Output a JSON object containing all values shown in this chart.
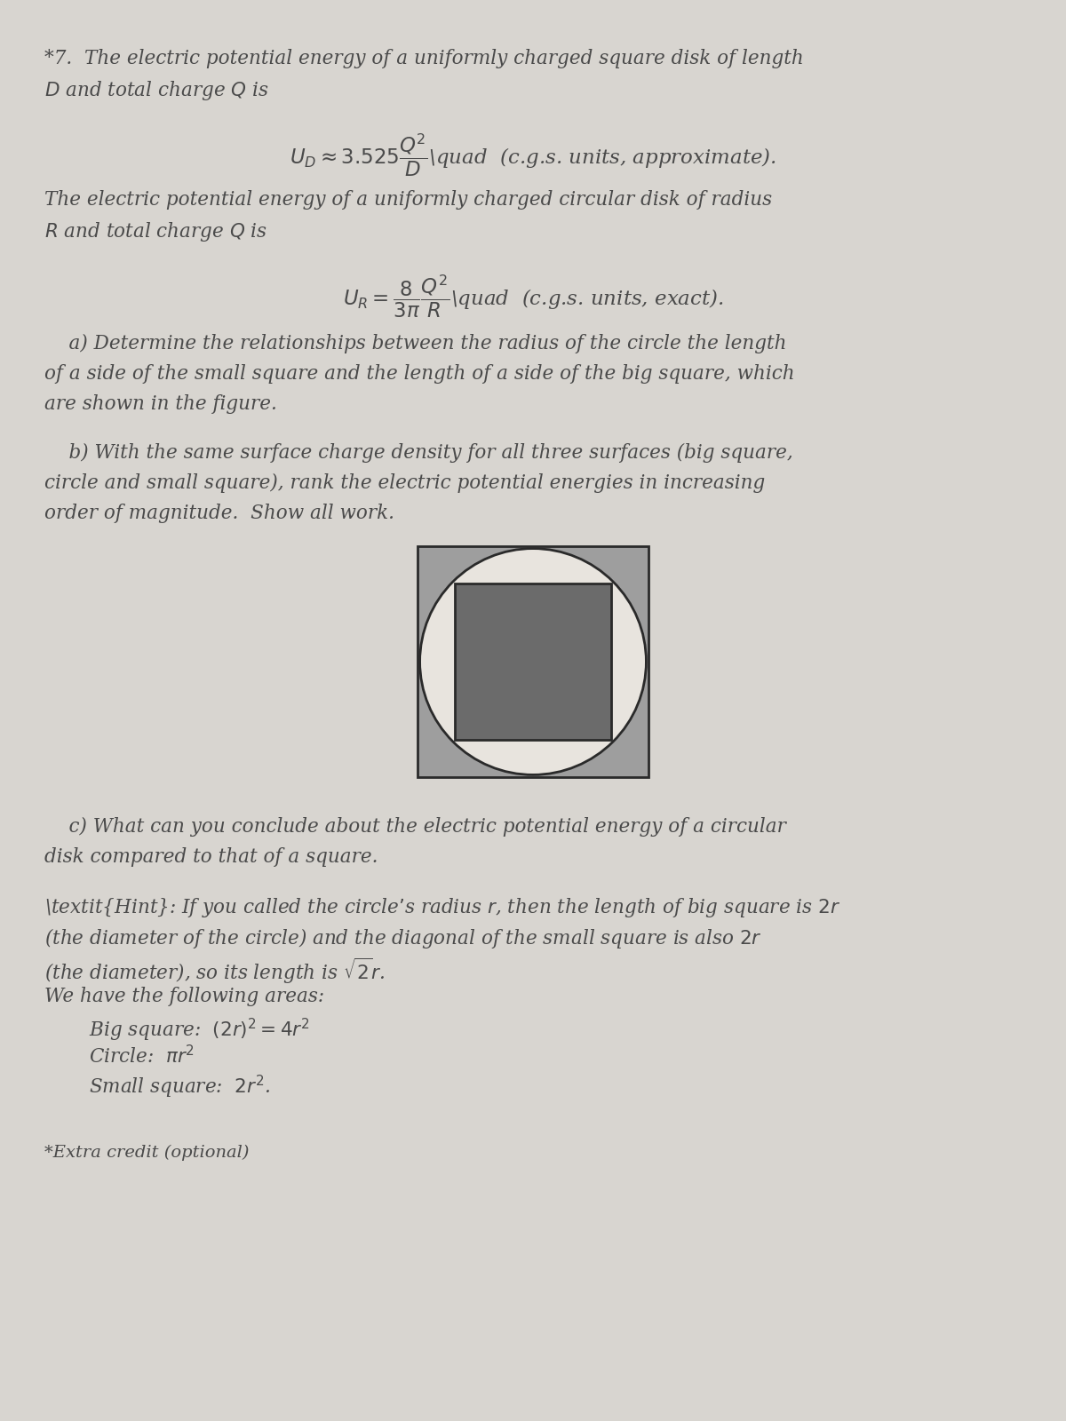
{
  "bg_color": "#d8d5d0",
  "text_color": "#4a4a4a",
  "title_line1": "*7.  The electric potential energy of a uniformly charged square disk of length",
  "title_line2": "$D$ and total charge $Q$ is",
  "eq1": "$U_D \\approx 3.525\\dfrac{Q^2}{D}$\\quad  (c.g.s. units, approximate).",
  "para2_line1": "The electric potential energy of a uniformly charged circular disk of radius",
  "para2_line2": "$R$ and total charge $Q$ is",
  "eq2": "$U_R = \\dfrac{8}{3\\pi}\\dfrac{Q^2}{R}$\\quad  (c.g.s. units, exact).",
  "part_a_indent": "    a) Determine the relationships between the radius of the circle the length",
  "part_a_line2": "of a side of the small square and the length of a side of the big square, which",
  "part_a_line3": "are shown in the figure.",
  "part_b_indent": "    b) With the same surface charge density for all three surfaces (big square,",
  "part_b_line2": "circle and small square), rank the electric potential energies in increasing",
  "part_b_line3": "order of magnitude.  Show all work.",
  "part_c_indent": "    c) What can you conclude about the electric potential energy of a circular",
  "part_c_line2": "disk compared to that of a square.",
  "hint_line1": "\\textit{Hint}: If you called the circle’s radius $r$, then the length of big square is $2r$",
  "hint_line1_plain": "Hint:  If you called the circle’s radius r, then the length of big square is 2r",
  "hint_line2": "(the diameter of the circle) and the diagonal of the small square is also $2r$",
  "hint_line3": "(the diameter), so its length is $\\sqrt{2}r$.",
  "hint_line4": "We have the following areas:",
  "hint_line5": "Big square:  $(2r)^2 = 4r^2$",
  "hint_line6": "Circle:  $\\pi r^2$",
  "hint_line7": "Small square:  $2r^2$.",
  "extra_credit": "*Extra credit (optional)",
  "big_square_color": "#9e9e9e",
  "circle_fill_color": "#e8e4de",
  "small_square_color": "#6b6b6b",
  "border_color": "#2a2a2a",
  "lw_border": 2.0
}
